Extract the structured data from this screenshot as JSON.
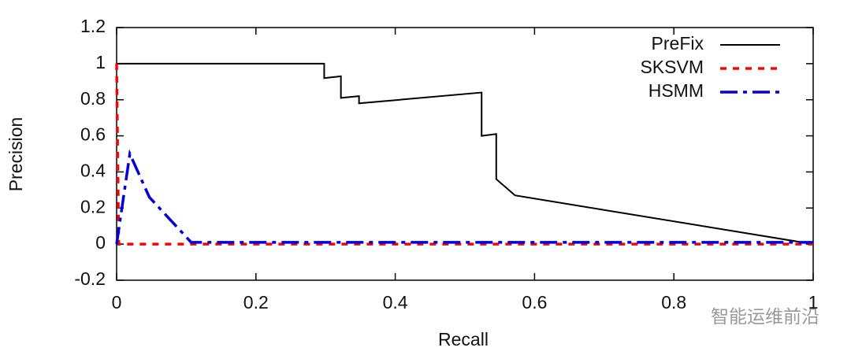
{
  "chart_data": {
    "type": "line",
    "xlabel": "Recall",
    "ylabel": "Precision",
    "xlim": [
      0,
      1
    ],
    "ylim": [
      -0.2,
      1.2
    ],
    "xticks": [
      0,
      0.2,
      0.4,
      0.6,
      0.8,
      1
    ],
    "yticks": [
      -0.2,
      0,
      0.2,
      0.4,
      0.6,
      0.8,
      1,
      1.2
    ],
    "grid": false,
    "legend": "upper right",
    "watermark": "智能运维前沿",
    "series": [
      {
        "name": "PreFix",
        "color": "#000000",
        "style": "solid",
        "x": [
          0,
          0.298,
          0.298,
          0.322,
          0.322,
          0.348,
          0.348,
          0.524,
          0.524,
          0.545,
          0.545,
          0.572,
          1
        ],
        "values": [
          1,
          1,
          0.92,
          0.93,
          0.81,
          0.82,
          0.78,
          0.84,
          0.6,
          0.61,
          0.36,
          0.27,
          0
        ]
      },
      {
        "name": "SKSVM",
        "color": "#ff0000",
        "style": "dashed",
        "x": [
          0,
          0.003,
          1
        ],
        "values": [
          1,
          0,
          0
        ]
      },
      {
        "name": "HSMM",
        "color": "#0000dd",
        "style": "dashdot",
        "x": [
          0,
          0.019,
          0.047,
          0.107,
          1
        ],
        "values": [
          0,
          0.5,
          0.26,
          0.01,
          0.01
        ]
      }
    ]
  }
}
